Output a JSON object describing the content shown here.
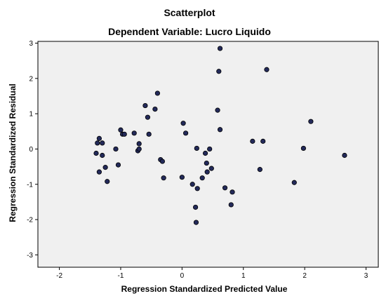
{
  "chart_data": {
    "type": "scatter",
    "title": "Scatterplot",
    "subtitle": "Dependent Variable: Lucro Liquido",
    "xlabel": "Regression Standardized Predicted Value",
    "ylabel": "Regression Standardized Residual",
    "xlim": [
      -2.35,
      3.2
    ],
    "ylim": [
      -3.35,
      3.05
    ],
    "xticks": [
      -2,
      -1,
      0,
      1,
      2,
      3
    ],
    "yticks": [
      3,
      2,
      1,
      0,
      -1,
      -2,
      -3
    ],
    "grid": false,
    "marker_color": "#232a5a",
    "marker_stroke": "#000000",
    "plot_background": "#f0f0f0",
    "points": [
      {
        "x": -1.4,
        "y": -0.12
      },
      {
        "x": -1.38,
        "y": 0.17
      },
      {
        "x": -1.35,
        "y": 0.3
      },
      {
        "x": -1.35,
        "y": -0.65
      },
      {
        "x": -1.3,
        "y": -0.18
      },
      {
        "x": -1.3,
        "y": 0.17
      },
      {
        "x": -1.25,
        "y": -0.52
      },
      {
        "x": -1.22,
        "y": -0.92
      },
      {
        "x": -1.08,
        "y": 0.0
      },
      {
        "x": -1.04,
        "y": -0.45
      },
      {
        "x": -1.0,
        "y": 0.54
      },
      {
        "x": -0.97,
        "y": 0.42
      },
      {
        "x": -0.94,
        "y": 0.42
      },
      {
        "x": -0.78,
        "y": 0.45
      },
      {
        "x": -0.72,
        "y": -0.05
      },
      {
        "x": -0.7,
        "y": 0.15
      },
      {
        "x": -0.7,
        "y": 0.0
      },
      {
        "x": -0.6,
        "y": 1.23
      },
      {
        "x": -0.56,
        "y": 0.9
      },
      {
        "x": -0.54,
        "y": 0.42
      },
      {
        "x": -0.44,
        "y": 1.13
      },
      {
        "x": -0.4,
        "y": 1.58
      },
      {
        "x": -0.35,
        "y": -0.3
      },
      {
        "x": -0.32,
        "y": -0.35
      },
      {
        "x": -0.3,
        "y": -0.82
      },
      {
        "x": 0.02,
        "y": 0.73
      },
      {
        "x": 0.0,
        "y": -0.8
      },
      {
        "x": 0.06,
        "y": 0.45
      },
      {
        "x": 0.17,
        "y": -1.0
      },
      {
        "x": 0.22,
        "y": -1.65
      },
      {
        "x": 0.23,
        "y": -2.08
      },
      {
        "x": 0.24,
        "y": 0.02
      },
      {
        "x": 0.25,
        "y": -1.12
      },
      {
        "x": 0.33,
        "y": -0.82
      },
      {
        "x": 0.38,
        "y": -0.12
      },
      {
        "x": 0.4,
        "y": -0.4
      },
      {
        "x": 0.41,
        "y": -0.65
      },
      {
        "x": 0.45,
        "y": 0.0
      },
      {
        "x": 0.48,
        "y": -0.55
      },
      {
        "x": 0.58,
        "y": 1.1
      },
      {
        "x": 0.6,
        "y": 2.2
      },
      {
        "x": 0.62,
        "y": 2.85
      },
      {
        "x": 0.62,
        "y": 0.55
      },
      {
        "x": 0.7,
        "y": -1.1
      },
      {
        "x": 0.8,
        "y": -1.58
      },
      {
        "x": 0.82,
        "y": -1.22
      },
      {
        "x": 1.15,
        "y": 0.22
      },
      {
        "x": 1.27,
        "y": -0.58
      },
      {
        "x": 1.32,
        "y": 0.22
      },
      {
        "x": 1.38,
        "y": 2.25
      },
      {
        "x": 1.83,
        "y": -0.95
      },
      {
        "x": 1.98,
        "y": 0.02
      },
      {
        "x": 2.1,
        "y": 0.78
      },
      {
        "x": 2.65,
        "y": -0.18
      }
    ]
  }
}
